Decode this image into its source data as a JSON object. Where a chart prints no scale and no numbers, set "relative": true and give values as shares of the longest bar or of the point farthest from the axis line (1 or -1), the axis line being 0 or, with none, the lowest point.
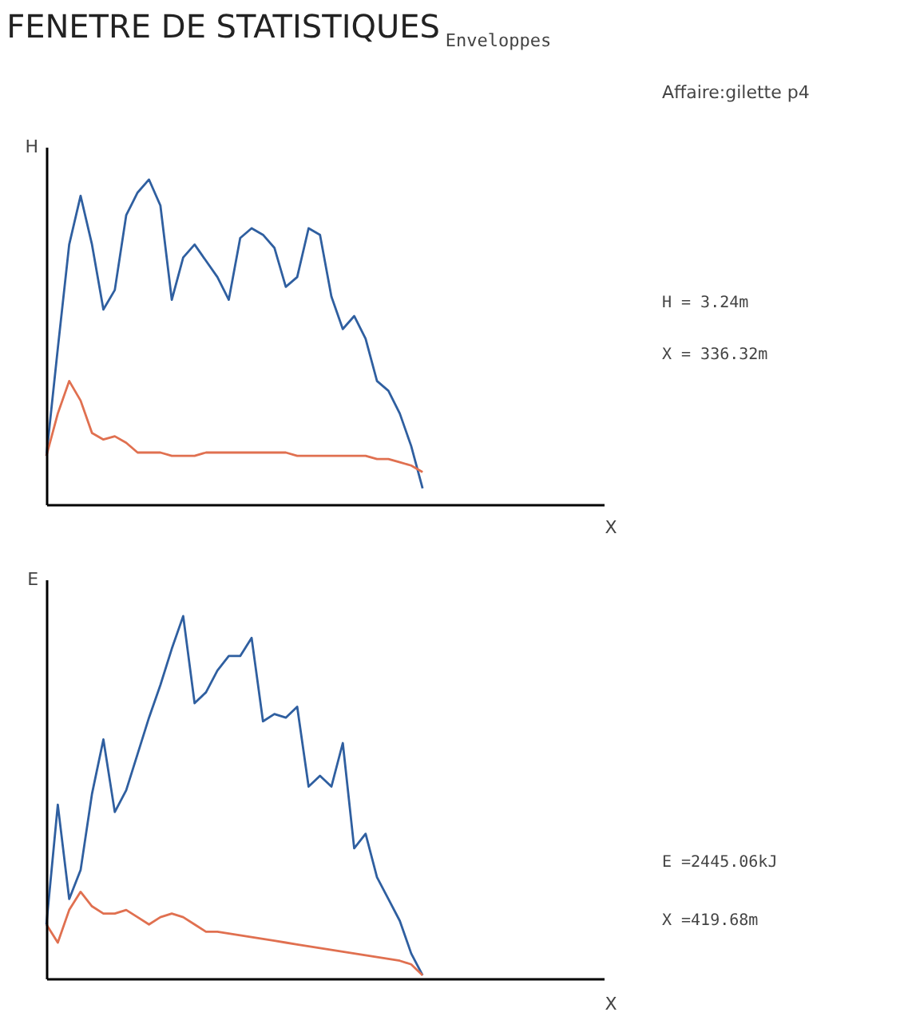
{
  "chart_data": [
    {
      "type": "line",
      "title": "FENETRE DE STATISTIQUES",
      "subtitle": "Enveloppes",
      "xlabel": "X",
      "ylabel": "H",
      "relative": true,
      "annotations": [
        "Affaire:gilette p4",
        "H = 3.24m",
        "X = 336.32m"
      ],
      "categories": [
        null,
        null,
        null,
        null,
        null,
        null,
        null,
        null,
        null,
        null,
        null,
        null,
        null,
        null,
        null,
        null,
        null,
        null,
        null,
        null,
        null,
        null,
        null,
        null,
        null,
        null,
        null,
        null,
        null,
        null,
        null,
        null,
        null,
        null,
        null,
        null,
        null,
        null,
        null,
        null,
        null,
        null,
        null,
        null,
        null,
        null,
        null,
        null,
        null,
        null
      ],
      "series": [
        {
          "color": "#2f5fa0",
          "values": [
            0.15,
            0.48,
            0.8,
            0.95,
            0.8,
            0.6,
            0.66,
            0.89,
            0.96,
            1.0,
            0.92,
            0.63,
            0.76,
            0.8,
            0.75,
            0.7,
            0.63,
            0.82,
            0.85,
            0.83,
            0.79,
            0.67,
            0.7,
            0.85,
            0.83,
            0.64,
            0.54,
            0.58,
            0.51,
            0.38,
            0.35,
            0.28,
            0.18,
            0.05,
            null,
            null,
            null,
            null,
            null,
            null,
            null,
            null,
            null,
            null,
            null,
            null,
            null,
            null,
            null,
            null
          ]
        },
        {
          "color": "#e07050",
          "values": [
            0.15,
            0.28,
            0.38,
            0.32,
            0.22,
            0.2,
            0.21,
            0.19,
            0.16,
            0.16,
            0.16,
            0.15,
            0.15,
            0.15,
            0.16,
            0.16,
            0.16,
            0.16,
            0.16,
            0.16,
            0.16,
            0.16,
            0.15,
            0.15,
            0.15,
            0.15,
            0.15,
            0.15,
            0.15,
            0.14,
            0.14,
            0.13,
            0.12,
            0.1,
            null,
            null,
            null,
            null,
            null,
            null,
            null,
            null,
            null,
            null,
            null,
            null,
            null,
            null,
            null,
            null
          ]
        }
      ]
    },
    {
      "type": "line",
      "xlabel": "X",
      "ylabel": "E",
      "relative": true,
      "annotations": [
        "E =2445.06kJ",
        "X =419.68m"
      ],
      "categories": [
        null,
        null,
        null,
        null,
        null,
        null,
        null,
        null,
        null,
        null,
        null,
        null,
        null,
        null,
        null,
        null,
        null,
        null,
        null,
        null,
        null,
        null,
        null,
        null,
        null,
        null,
        null,
        null,
        null,
        null,
        null,
        null,
        null,
        null,
        null,
        null,
        null,
        null,
        null,
        null,
        null,
        null,
        null,
        null,
        null,
        null,
        null,
        null,
        null,
        null
      ],
      "series": [
        {
          "color": "#2f5fa0",
          "values": [
            0.15,
            0.48,
            0.22,
            0.3,
            0.51,
            0.66,
            0.46,
            0.52,
            0.62,
            0.72,
            0.81,
            0.91,
            1.0,
            0.76,
            0.79,
            0.85,
            0.89,
            0.89,
            0.94,
            0.71,
            0.73,
            0.72,
            0.75,
            0.53,
            0.56,
            0.53,
            0.65,
            0.36,
            0.4,
            0.28,
            0.22,
            0.16,
            0.07,
            0.01,
            null,
            null,
            null,
            null,
            null,
            null,
            null,
            null,
            null,
            null,
            null,
            null,
            null,
            null,
            null,
            null
          ]
        },
        {
          "color": "#e07050",
          "values": [
            0.15,
            0.1,
            0.19,
            0.24,
            0.2,
            0.18,
            0.18,
            0.19,
            0.17,
            0.15,
            0.17,
            0.18,
            0.17,
            0.15,
            0.13,
            0.13,
            0.125,
            0.12,
            0.115,
            0.11,
            0.105,
            0.1,
            0.095,
            0.09,
            0.085,
            0.08,
            0.075,
            0.07,
            0.065,
            0.06,
            0.055,
            0.05,
            0.04,
            0.01,
            null,
            null,
            null,
            null,
            null,
            null,
            null,
            null,
            null,
            null,
            null,
            null,
            null,
            null,
            null,
            null
          ]
        }
      ]
    }
  ]
}
